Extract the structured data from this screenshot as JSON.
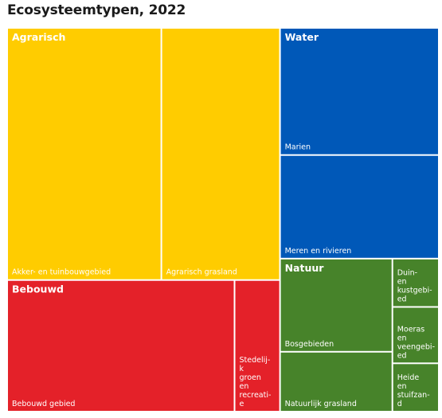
{
  "chart_data": {
    "type": "treemap",
    "title": "Ecosysteemtypen, 2022",
    "groups": [
      {
        "name": "Agrarisch",
        "color": "#FFCC00",
        "items": [
          {
            "name": "Akker- en tuinbouwgebied",
            "value": 5.2
          },
          {
            "name": "Agrarisch grasland",
            "value": 4.0
          }
        ]
      },
      {
        "name": "Water",
        "color": "#0058B8",
        "items": [
          {
            "name": "Marien",
            "value": 2.7
          },
          {
            "name": "Meren en rivieren",
            "value": 2.2
          }
        ]
      },
      {
        "name": "Bebouwd",
        "color": "#E42129",
        "items": [
          {
            "name": "Bebouwd gebied",
            "value": 4.0
          },
          {
            "name": "Stedelijk groen en recreatie",
            "value": 0.8
          }
        ]
      },
      {
        "name": "Natuur",
        "color": "#47832A",
        "items": [
          {
            "name": "Bosgebieden",
            "value": 1.4
          },
          {
            "name": "Natuurlijk grasland",
            "value": 0.9
          },
          {
            "name": "Duin- en kustgebied",
            "value": 0.3
          },
          {
            "name": "Moeras en veengebied",
            "value": 0.35
          },
          {
            "name": "Heide en stuifzand",
            "value": 0.3
          }
        ]
      }
    ]
  }
}
